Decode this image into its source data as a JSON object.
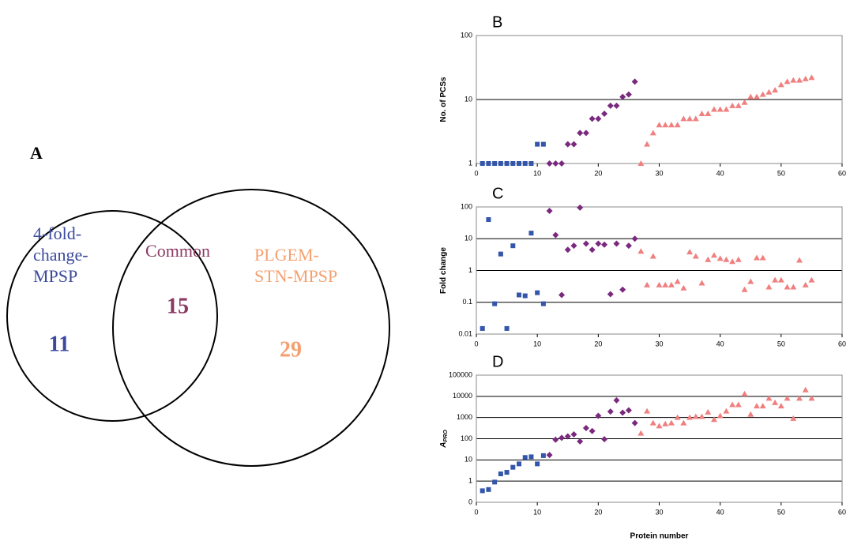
{
  "venn": {
    "title": "A",
    "sets": [
      {
        "label": [
          "4-fold-",
          "change-",
          "MPSP"
        ],
        "count": "11",
        "color": "#3b4a9c"
      },
      {
        "label": [
          "Common"
        ],
        "count": "15",
        "color": "#8b3a62"
      },
      {
        "label": [
          "PLGEM-",
          "STN-MPSP"
        ],
        "count": "29",
        "color": "#f4a070"
      }
    ]
  },
  "chart_data": [
    {
      "type": "scatter",
      "title": "B",
      "y_label": "No. of PCSs",
      "log_y": true,
      "grid": true,
      "xlim": [
        0,
        60
      ],
      "xticks": [
        0,
        10,
        20,
        30,
        40,
        50,
        60
      ],
      "ylim": [
        1,
        100
      ],
      "yticks": [
        1,
        10,
        100
      ],
      "series": [
        {
          "color": "#3355aa",
          "marker": "square",
          "x": [
            1,
            2,
            3,
            4,
            5,
            6,
            7,
            8,
            9,
            10,
            11
          ],
          "values": [
            1,
            1,
            1,
            1,
            1,
            1,
            1,
            1,
            1,
            2,
            2
          ]
        },
        {
          "color": "#7a2a7e",
          "marker": "diamond",
          "x": [
            12,
            13,
            14,
            15,
            16,
            17,
            18,
            19,
            20,
            21,
            22,
            23,
            24,
            25,
            26
          ],
          "values": [
            1,
            1,
            1,
            2,
            2,
            3,
            3,
            5,
            5,
            6,
            8,
            8,
            11,
            12,
            19
          ]
        },
        {
          "color": "#f08080",
          "marker": "triangle",
          "x": [
            27,
            28,
            29,
            30,
            31,
            32,
            33,
            34,
            35,
            36,
            37,
            38,
            39,
            40,
            41,
            42,
            43,
            44,
            45,
            46,
            47,
            48,
            49,
            50,
            51,
            52,
            53,
            54,
            55
          ],
          "values": [
            1,
            2,
            3,
            4,
            4,
            4,
            4,
            5,
            5,
            5,
            6,
            6,
            7,
            7,
            7,
            8,
            8,
            9,
            11,
            11,
            12,
            13,
            14,
            17,
            19,
            20,
            20,
            21,
            22
          ]
        }
      ]
    },
    {
      "type": "scatter",
      "title": "C",
      "y_label": "Fold change",
      "log_y": true,
      "grid": true,
      "xlim": [
        0,
        60
      ],
      "xticks": [
        0,
        10,
        20,
        30,
        40,
        50,
        60
      ],
      "ylim": [
        0.01,
        100
      ],
      "yticks": [
        0.01,
        0.1,
        1,
        10,
        100
      ],
      "series": [
        {
          "color": "#3355aa",
          "marker": "square",
          "x": [
            1,
            2,
            3,
            4,
            5,
            6,
            7,
            8,
            9,
            10,
            11
          ],
          "values": [
            0.015,
            40,
            0.09,
            3.3,
            0.015,
            6,
            0.17,
            0.16,
            15,
            0.2,
            0.09
          ]
        },
        {
          "color": "#7a2a7e",
          "marker": "diamond",
          "x": [
            12,
            13,
            14,
            15,
            16,
            17,
            18,
            19,
            20,
            21,
            22,
            23,
            24,
            25,
            26
          ],
          "values": [
            75,
            13,
            0.17,
            4.5,
            6,
            95,
            7,
            4.5,
            7,
            6.5,
            0.18,
            7,
            0.25,
            6,
            10
          ]
        },
        {
          "color": "#f08080",
          "marker": "triangle",
          "x": [
            27,
            28,
            29,
            30,
            31,
            32,
            33,
            34,
            35,
            36,
            37,
            38,
            39,
            40,
            41,
            42,
            43,
            44,
            45,
            46,
            47,
            48,
            49,
            50,
            51,
            52,
            53,
            54,
            55
          ],
          "values": [
            4,
            0.35,
            2.8,
            0.35,
            0.35,
            0.35,
            0.45,
            0.28,
            3.8,
            2.8,
            0.4,
            2.2,
            3,
            2.4,
            2.2,
            1.9,
            2.2,
            0.25,
            0.45,
            2.5,
            2.5,
            0.3,
            0.5,
            0.5,
            0.3,
            0.3,
            2.1,
            0.35,
            0.5
          ]
        }
      ]
    },
    {
      "type": "scatter",
      "title": "D",
      "y_label": "A",
      "y_label_subscript": "PRO",
      "x_label": "Protein number",
      "log_y": true,
      "grid": true,
      "xlim": [
        0,
        60
      ],
      "xticks": [
        0,
        10,
        20,
        30,
        40,
        50,
        60
      ],
      "ylim": [
        0.1,
        100000
      ],
      "yticks": [
        {
          "value": 0.1,
          "label": "0"
        },
        1,
        10,
        100,
        1000,
        10000,
        100000
      ],
      "series": [
        {
          "color": "#3355aa",
          "marker": "square",
          "x": [
            1,
            2,
            3,
            4,
            5,
            6,
            7,
            8,
            9,
            10,
            11
          ],
          "values": [
            0.35,
            0.4,
            0.9,
            2.2,
            2.6,
            4.5,
            6.5,
            13,
            14,
            6.5,
            16
          ]
        },
        {
          "color": "#7a2a7e",
          "marker": "diamond",
          "x": [
            12,
            13,
            14,
            15,
            16,
            17,
            18,
            19,
            20,
            21,
            22,
            23,
            24,
            25,
            26
          ],
          "values": [
            17,
            90,
            110,
            130,
            160,
            75,
            320,
            230,
            1200,
            95,
            1900,
            6500,
            1700,
            2200,
            550
          ]
        },
        {
          "color": "#f08080",
          "marker": "triangle",
          "x": [
            27,
            28,
            29,
            30,
            31,
            32,
            33,
            34,
            35,
            36,
            37,
            38,
            39,
            40,
            41,
            42,
            43,
            44,
            45,
            46,
            47,
            48,
            49,
            50,
            51,
            52,
            53,
            54,
            55
          ],
          "values": [
            180,
            2000,
            550,
            400,
            500,
            550,
            1000,
            550,
            1000,
            1100,
            1100,
            1800,
            800,
            1200,
            2000,
            4000,
            4000,
            13000,
            1400,
            3500,
            3500,
            8000,
            5000,
            3500,
            8000,
            900,
            8000,
            20000,
            8000
          ]
        }
      ]
    }
  ]
}
